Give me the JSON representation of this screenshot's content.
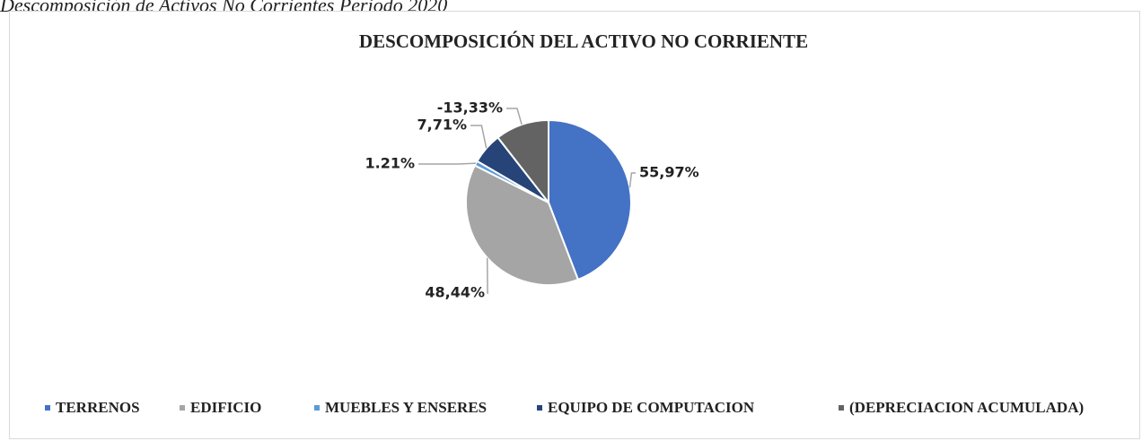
{
  "caption": "Descomposición de Activos No Corrientes Periodo 2020",
  "chart_data": {
    "type": "pie",
    "title": "DESCOMPOSICIÓN DEL ACTIVO NO CORRIENTE",
    "categories": [
      "TERRENOS",
      "EDIFICIO",
      "MUEBLES Y ENSERES",
      "EQUIPO DE COMPUTACION",
      "(DEPRECIACION ACUMULADA)"
    ],
    "values": [
      55.97,
      48.44,
      1.21,
      7.71,
      -13.33
    ],
    "value_labels": [
      "55,97%",
      "48,44%",
      "1.21%",
      "7,71%",
      "-13,33%"
    ],
    "colors": [
      "#4472c4",
      "#a5a5a5",
      "#5b9bd5",
      "#264478",
      "#636363"
    ],
    "legend": "bottom"
  }
}
